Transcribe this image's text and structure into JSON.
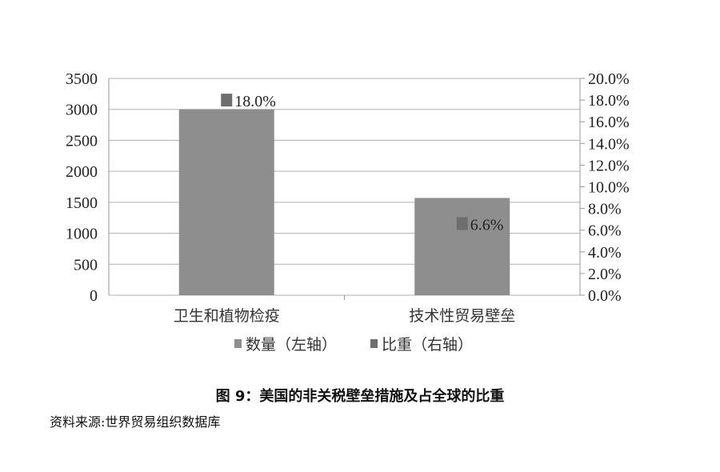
{
  "chart_data": {
    "type": "bar",
    "categories": [
      "卫生和植物检疫",
      "技术性贸易壁垒"
    ],
    "series": [
      {
        "name": "数量（左轴）",
        "axis": "left",
        "kind": "bar",
        "values": [
          3000,
          1570
        ],
        "color": "#8e8e8e"
      },
      {
        "name": "比重（右轴）",
        "axis": "right",
        "kind": "marker",
        "values": [
          18.0,
          6.6
        ],
        "labels": [
          "18.0%",
          "6.6%"
        ],
        "color": "#6e6e6e"
      }
    ],
    "y_left": {
      "range": [
        0,
        3500
      ],
      "ticks": [
        "0",
        "500",
        "1000",
        "1500",
        "2000",
        "2500",
        "3000",
        "3500"
      ]
    },
    "y_right": {
      "range": [
        0,
        20
      ],
      "ticks": [
        "0.0%",
        "2.0%",
        "4.0%",
        "6.0%",
        "8.0%",
        "10.0%",
        "12.0%",
        "14.0%",
        "16.0%",
        "18.0%",
        "20.0%"
      ]
    },
    "grid": true,
    "legend_position": "bottom",
    "title": "图 9：美国的非关税壁垒措施及占全球的比重",
    "source": "资料来源:世界贸易组织数据库"
  }
}
